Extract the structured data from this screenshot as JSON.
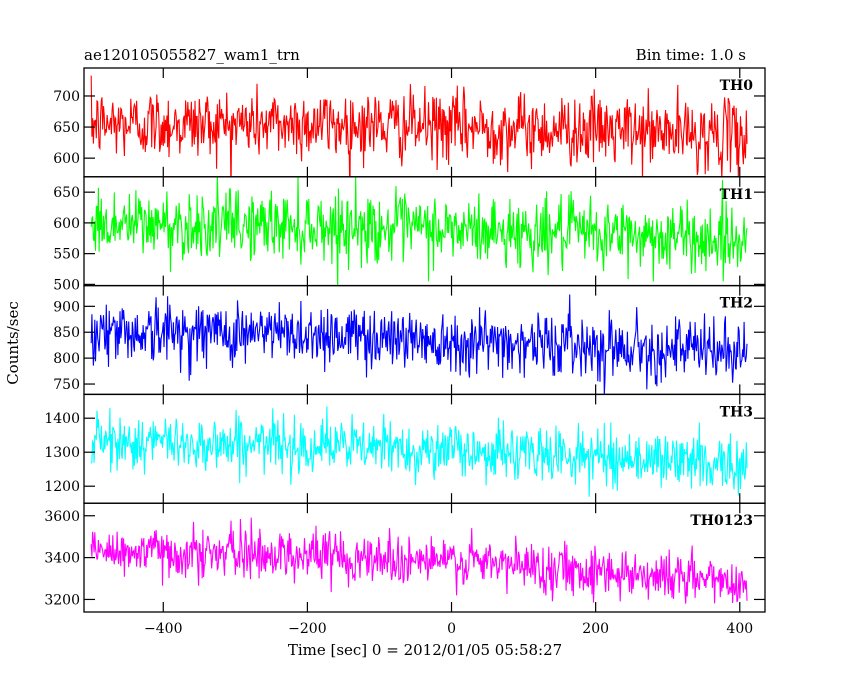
{
  "header": {
    "title": "ae120105055827_wam1_trn",
    "bin_time": "Bin time: 1.0 s"
  },
  "chart_data": {
    "type": "line",
    "title": "ae120105055827_wam1_trn",
    "subtitle": "Bin time: 1.0 s",
    "xlabel": "Time [sec] 0 = 2012/01/05 05:58:27",
    "ylabel": "Counts/sec",
    "xlim": [
      -510,
      435
    ],
    "x_range": [
      -500,
      410
    ],
    "x_ticks": [
      -400,
      -200,
      0,
      200,
      400
    ],
    "x_tick_labels": [
      "−400",
      "−200",
      "0",
      "200",
      "400"
    ],
    "grid": false,
    "panels": [
      {
        "name": "TH0",
        "color": "#ff0000",
        "ylim": [
          570,
          745
        ],
        "y_ticks": [
          600,
          650,
          700
        ],
        "trend": [
          [
            -500,
            655
          ],
          [
            -200,
            655
          ],
          [
            0,
            650
          ],
          [
            200,
            645
          ],
          [
            410,
            635
          ]
        ],
        "noise_sd": 28
      },
      {
        "name": "TH1",
        "color": "#00ff00",
        "ylim": [
          498,
          675
        ],
        "y_ticks": [
          500,
          550,
          600,
          650
        ],
        "trend": [
          [
            -500,
            598
          ],
          [
            -200,
            596
          ],
          [
            0,
            588
          ],
          [
            200,
            582
          ],
          [
            410,
            572
          ]
        ],
        "noise_sd": 28
      },
      {
        "name": "TH2",
        "color": "#0000ff",
        "ylim": [
          730,
          940
        ],
        "y_ticks": [
          750,
          800,
          850,
          900
        ],
        "trend": [
          [
            -500,
            852
          ],
          [
            -200,
            848
          ],
          [
            0,
            835
          ],
          [
            200,
            825
          ],
          [
            410,
            810
          ]
        ],
        "noise_sd": 30
      },
      {
        "name": "TH3",
        "color": "#00ffff",
        "ylim": [
          1150,
          1470
        ],
        "y_ticks": [
          1200,
          1300,
          1400
        ],
        "trend": [
          [
            -500,
            1330
          ],
          [
            -200,
            1322
          ],
          [
            0,
            1305
          ],
          [
            200,
            1288
          ],
          [
            410,
            1265
          ]
        ],
        "noise_sd": 40
      },
      {
        "name": "TH0123",
        "color": "#ff00ff",
        "ylim": [
          3140,
          3660
        ],
        "y_ticks": [
          3200,
          3400,
          3600
        ],
        "trend": [
          [
            -500,
            3430
          ],
          [
            -200,
            3415
          ],
          [
            0,
            3380
          ],
          [
            200,
            3340
          ],
          [
            410,
            3280
          ]
        ],
        "noise_sd": 60
      }
    ]
  }
}
